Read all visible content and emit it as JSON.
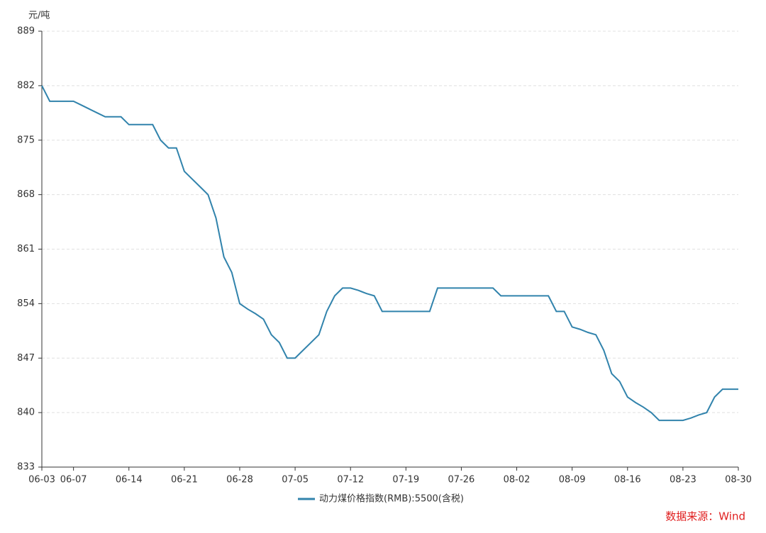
{
  "chart_data": {
    "type": "line",
    "y_unit": "元/吨",
    "source": "数据来源：Wind",
    "categories": [
      "06-03",
      null,
      null,
      null,
      "06-07",
      null,
      null,
      null,
      null,
      null,
      null,
      "06-14",
      null,
      null,
      null,
      null,
      null,
      null,
      "06-21",
      null,
      null,
      null,
      null,
      null,
      null,
      "06-28",
      null,
      null,
      null,
      null,
      null,
      null,
      "07-05",
      null,
      null,
      null,
      null,
      null,
      null,
      "07-12",
      null,
      null,
      null,
      null,
      null,
      null,
      "07-19",
      null,
      null,
      null,
      null,
      null,
      null,
      "07-26",
      null,
      null,
      null,
      null,
      null,
      null,
      "08-02",
      null,
      null,
      null,
      null,
      null,
      null,
      "08-09",
      null,
      null,
      null,
      null,
      null,
      null,
      "08-16",
      null,
      null,
      null,
      null,
      null,
      null,
      "08-23",
      null,
      null,
      null,
      null,
      null,
      null,
      "08-30"
    ],
    "series": [
      {
        "name": "动力煤价格指数(RMB):5500(含税)",
        "color": "#3183ac",
        "values": [
          882,
          880,
          880,
          880,
          880,
          879.5,
          879,
          878.5,
          878,
          878,
          878,
          877,
          877,
          877,
          877,
          875,
          874,
          874,
          871,
          870,
          869,
          868,
          865,
          860,
          858,
          854,
          853.3,
          852.7,
          852,
          850,
          849,
          847,
          847,
          848,
          849,
          850,
          853,
          855,
          856,
          856,
          855.7,
          855.3,
          855,
          853,
          853,
          853,
          853,
          853,
          853,
          853,
          856,
          856,
          856,
          856,
          856,
          856,
          856,
          856,
          855,
          855,
          855,
          855,
          855,
          855,
          855,
          853,
          853,
          851,
          850.7,
          850.3,
          850,
          848,
          845,
          844,
          842,
          841.3,
          840.7,
          840,
          839,
          839,
          839,
          839,
          839.3,
          839.7,
          840,
          842,
          843,
          843,
          843
        ]
      }
    ],
    "ylim": [
      833,
      889
    ],
    "yticks": [
      833,
      840,
      847,
      854,
      861,
      868,
      875,
      882,
      889
    ],
    "grid": true,
    "legend": "bottom"
  }
}
